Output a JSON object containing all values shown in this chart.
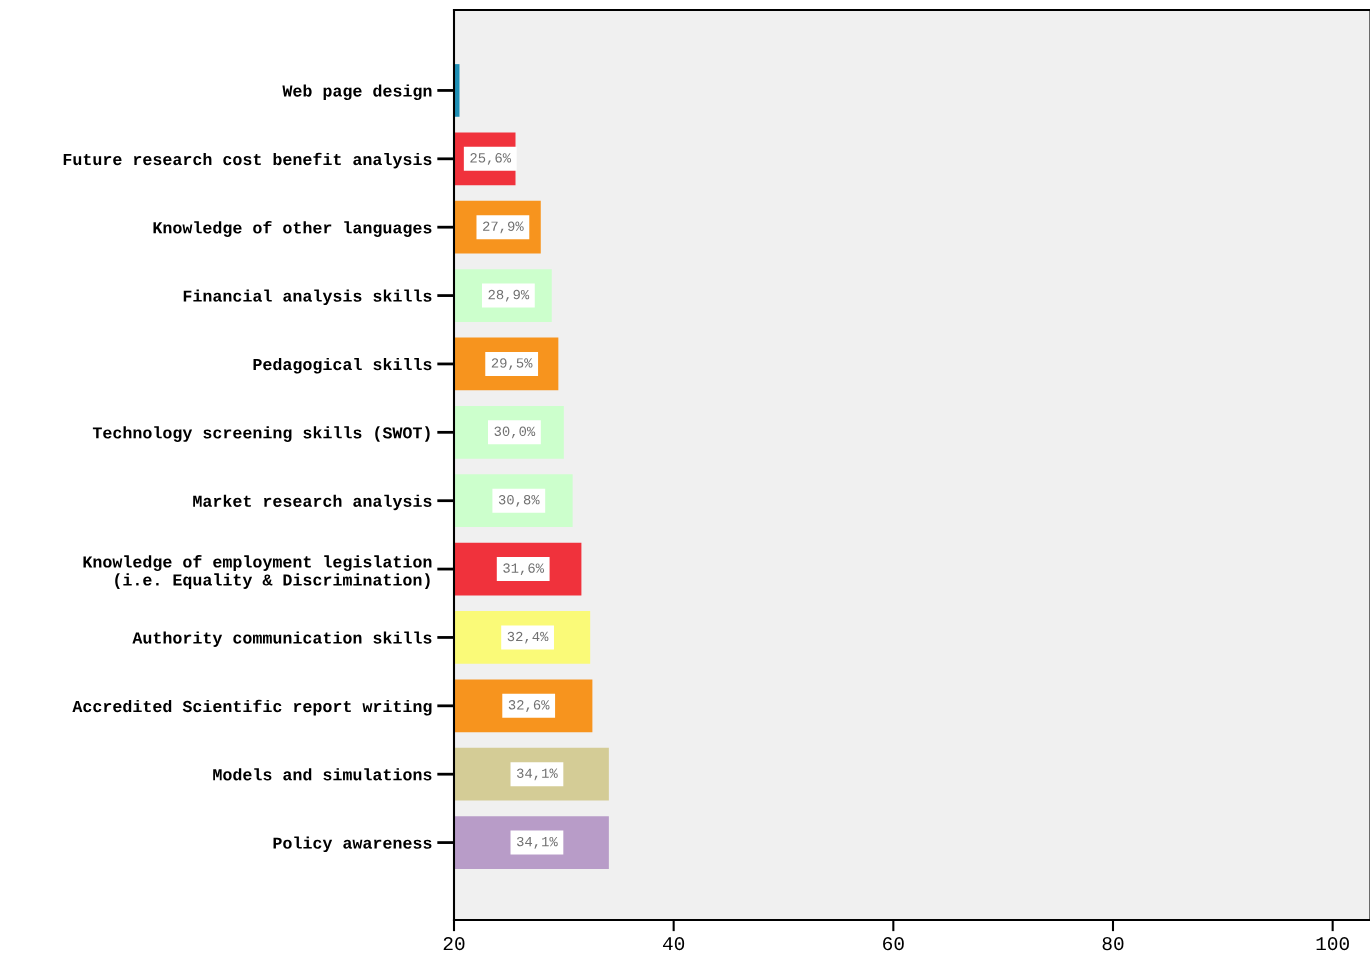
{
  "chart_data": {
    "type": "bar",
    "orientation": "horizontal",
    "categories": [
      "Web page design",
      "Future research cost benefit analysis",
      "Knowledge of other languages",
      "Financial analysis skills",
      "Pedagogical skills",
      "Technology screening skills (SWOT)",
      "Market research analysis",
      "Knowledge of employment legislation\n(i.e. Equality & Discrimination)",
      "Authority communication skills",
      "Accredited Scientific report writing",
      "Models and simulations",
      "Policy awareness"
    ],
    "values": [
      20.5,
      25.6,
      27.9,
      28.9,
      29.5,
      30.0,
      30.8,
      31.6,
      32.4,
      32.6,
      34.1,
      34.1
    ],
    "value_labels": [
      null,
      "25,6%",
      "27,9%",
      "28,9%",
      "29,5%",
      "30,0%",
      "30,8%",
      "31,6%",
      "32,4%",
      "32,6%",
      "34,1%",
      "34,1%"
    ],
    "colors": [
      "#1f8fb5",
      "#f0323c",
      "#f7941e",
      "#ccffcc",
      "#f7941e",
      "#ccffcc",
      "#ccffcc",
      "#f0323c",
      "#fafa78",
      "#f7941e",
      "#d4cc96",
      "#b89cc8"
    ],
    "xlim": [
      20,
      103.4
    ],
    "xticks": [
      20,
      40,
      60,
      80,
      100
    ],
    "grid": false,
    "legend": false
  }
}
